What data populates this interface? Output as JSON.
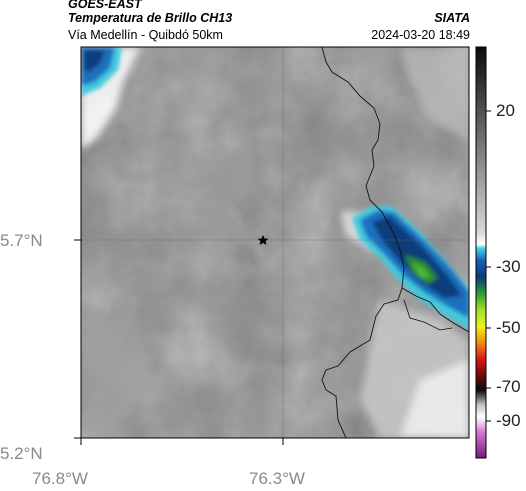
{
  "header": {
    "satellite": "GOES-EAST",
    "product": "Temperatura de Brillo CH13",
    "region": "Vía Medellín - Quibdó 50km",
    "source": "SIATA",
    "timestamp": "2024-03-20 18:49"
  },
  "axes": {
    "x_ticks": [
      "76.8°W",
      "76.3°W"
    ],
    "y_ticks": [
      "5.7°N",
      "5.2°N"
    ]
  },
  "colorbar": {
    "ticks": [
      "20",
      "-30",
      "-50",
      "-70",
      "-90"
    ]
  },
  "marker": {
    "icon": "star-icon"
  },
  "colors": {
    "cloud_cold_blue": "#1a6fc0",
    "cloud_deep_blue": "#0b3d7a",
    "core_green": "#2e8b2e",
    "edge_cyan": "#43c9dd",
    "terrain_gray": "#8f8f8f"
  }
}
